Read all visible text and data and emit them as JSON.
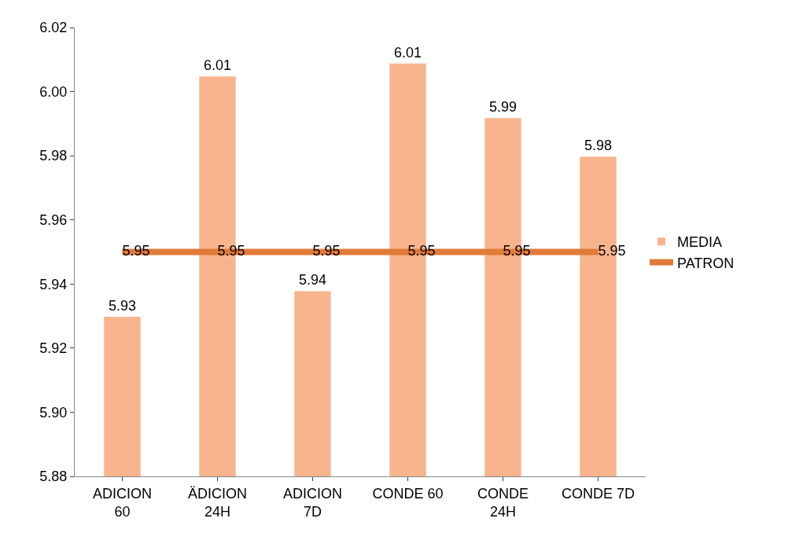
{
  "chart_data": {
    "type": "bar",
    "categories": [
      "ADICION 60",
      "ÄDICION 24H",
      "ADICION 7D",
      "CONDE 60",
      "CONDE 24H",
      "CONDE 7D"
    ],
    "series": [
      {
        "name": "MEDIA",
        "color": "#f8b48c",
        "values": [
          5.93,
          6.005,
          5.938,
          6.009,
          5.992,
          5.98
        ],
        "value_labels": [
          "5.93",
          "6.01",
          "5.94",
          "6.01",
          "5.99",
          "5.98"
        ]
      },
      {
        "name": "PATRON",
        "type": "line",
        "color": "#e07b39",
        "marker": "none",
        "values": [
          5.95,
          5.95,
          5.95,
          5.95,
          5.95,
          5.95
        ],
        "value_labels": [
          "5.95",
          "5.95",
          "5.95",
          "5.95",
          "5.95",
          "5.95"
        ]
      }
    ],
    "ylim": [
      5.88,
      6.02
    ],
    "yticks": [
      5.88,
      {
        "value": 5.9,
        "label": "5.90"
      },
      5.92,
      5.94,
      5.96,
      5.98,
      {
        "value": 6.0,
        "label": "6.00"
      },
      6.02
    ],
    "grid": false,
    "legend": "right"
  }
}
